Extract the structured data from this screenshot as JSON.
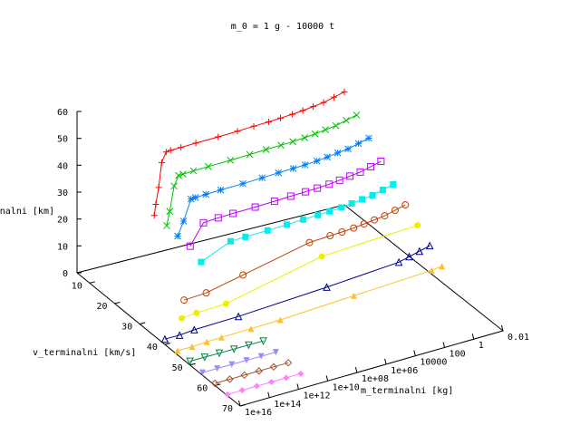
{
  "chart_data": {
    "type": "line",
    "title": "m_0 = 1 g - 10000 t",
    "zlabel": "h_terminalni [km]",
    "ylabel": "v_terminalni [km/s]",
    "xlabel": "m_terminalni [kg]",
    "zticks": [
      "0",
      "10",
      "20",
      "30",
      "40",
      "50",
      "60"
    ],
    "yticks": [
      "10",
      "20",
      "30",
      "40",
      "50",
      "60",
      "70"
    ],
    "xticks": [
      "0.01",
      "1",
      "100",
      "10000",
      "1e+06",
      "1e+08",
      "1e+10",
      "1e+12",
      "1e+14",
      "1e+16"
    ],
    "zlim": [
      0,
      60
    ],
    "ylim": [
      5,
      70
    ],
    "xlim_log10": [
      -2,
      16
    ],
    "series": [
      {
        "v": 5,
        "color": "#ff0000",
        "marker": "plus",
        "points": [
          [
            -2,
            42
          ],
          [
            -1.3,
            41
          ],
          [
            -0.6,
            40
          ],
          [
            0.1,
            39.5
          ],
          [
            0.8,
            39
          ],
          [
            1.5,
            38.6
          ],
          [
            2.3,
            38.3
          ],
          [
            3.1,
            38
          ],
          [
            4.1,
            37.8
          ],
          [
            5.2,
            37.5
          ],
          [
            6.5,
            37.2
          ],
          [
            8,
            37
          ],
          [
            9,
            36.8
          ],
          [
            9.7,
            36.7
          ],
          [
            10,
            36.5
          ],
          [
            10.3,
            33
          ],
          [
            10.5,
            24
          ],
          [
            10.7,
            18
          ],
          [
            10.8,
            14
          ]
        ]
      },
      {
        "v": 10,
        "color": "#00c000",
        "marker": "cross",
        "points": [
          [
            -2,
            37
          ],
          [
            -1.3,
            36
          ],
          [
            -0.6,
            35
          ],
          [
            0.1,
            34.5
          ],
          [
            0.8,
            34
          ],
          [
            1.5,
            33.5
          ],
          [
            2.3,
            33.2
          ],
          [
            3.1,
            33
          ],
          [
            4.1,
            32.8
          ],
          [
            5.2,
            32.5
          ],
          [
            6.5,
            32.2
          ],
          [
            8,
            32
          ],
          [
            9,
            31.8
          ],
          [
            9.7,
            31.6
          ],
          [
            10,
            31.5
          ],
          [
            10.3,
            28
          ],
          [
            10.6,
            19
          ],
          [
            10.8,
            14
          ]
        ]
      },
      {
        "v": 15,
        "color": "#0080ff",
        "marker": "star",
        "points": [
          [
            -2,
            32
          ],
          [
            -1.3,
            31
          ],
          [
            -0.6,
            30
          ],
          [
            0.1,
            29.5
          ],
          [
            0.8,
            29
          ],
          [
            1.5,
            28.5
          ],
          [
            2.3,
            28.2
          ],
          [
            3.1,
            28
          ],
          [
            4.1,
            27.8
          ],
          [
            5.2,
            27.5
          ],
          [
            6.5,
            27.2
          ],
          [
            8,
            27
          ],
          [
            9,
            26.8
          ],
          [
            9.7,
            26.6
          ],
          [
            10,
            26.5
          ],
          [
            10.5,
            19
          ],
          [
            10.9,
            14
          ]
        ]
      },
      {
        "v": 20,
        "color": "#c000ff",
        "marker": "open-square",
        "points": [
          [
            -2,
            27
          ],
          [
            -1.3,
            26
          ],
          [
            -0.6,
            25
          ],
          [
            0.1,
            24.5
          ],
          [
            0.8,
            24
          ],
          [
            1.5,
            23.5
          ],
          [
            2.3,
            23.2
          ],
          [
            3.1,
            23
          ],
          [
            4.1,
            22.8
          ],
          [
            5.2,
            22.5
          ],
          [
            6.5,
            22.2
          ],
          [
            8,
            22
          ],
          [
            9,
            21.8
          ],
          [
            10,
            21.4
          ],
          [
            10.9,
            14
          ]
        ]
      },
      {
        "v": 25,
        "color": "#00eeee",
        "marker": "filled-square",
        "points": [
          [
            -2,
            22
          ],
          [
            -1.3,
            21
          ],
          [
            -0.6,
            20
          ],
          [
            0.1,
            19.5
          ],
          [
            0.8,
            19
          ],
          [
            1.5,
            18.5
          ],
          [
            2.3,
            18.2
          ],
          [
            3.1,
            18
          ],
          [
            4.1,
            17.8
          ],
          [
            5.2,
            17.5
          ],
          [
            6.5,
            17.2
          ],
          [
            8,
            17
          ],
          [
            9,
            16.8
          ],
          [
            11,
            12
          ]
        ]
      },
      {
        "v": 30,
        "color": "#c04000",
        "marker": "open-circle",
        "points": [
          [
            -2,
            18
          ],
          [
            -1.3,
            17
          ],
          [
            -0.6,
            16
          ],
          [
            0.1,
            15.5
          ],
          [
            0.8,
            15
          ],
          [
            1.5,
            14.5
          ],
          [
            2.3,
            14.2
          ],
          [
            3.1,
            14
          ],
          [
            4.5,
            13.5
          ],
          [
            9,
            8
          ],
          [
            11.5,
            5
          ],
          [
            13,
            4.5
          ]
        ]
      },
      {
        "v": 35,
        "color": "#eeee00",
        "marker": "filled-circle",
        "points": [
          [
            -2,
            14
          ],
          [
            4.5,
            12
          ],
          [
            11,
            4
          ],
          [
            13,
            3.5
          ],
          [
            14,
            3
          ]
        ]
      },
      {
        "v": 40,
        "color": "#00008b",
        "marker": "open-triangle",
        "points": [
          [
            -2,
            10
          ],
          [
            -1.3,
            9
          ],
          [
            -0.6,
            8
          ],
          [
            0.1,
            7
          ],
          [
            5,
            5
          ],
          [
            11,
            3
          ],
          [
            14,
            2.5
          ],
          [
            15,
            2
          ],
          [
            16,
            2
          ]
        ]
      },
      {
        "v": 45,
        "color": "#ffc020",
        "marker": "filled-triangle",
        "points": [
          [
            -2,
            6
          ],
          [
            -1.3,
            5.5
          ],
          [
            4,
            4
          ],
          [
            9,
            2.5
          ],
          [
            11,
            2.2
          ],
          [
            13,
            2
          ],
          [
            14,
            1.8
          ],
          [
            15,
            1.5
          ],
          [
            16,
            1.5
          ]
        ]
      },
      {
        "v": 50,
        "color": "#008040",
        "marker": "open-triangle-down",
        "points": [
          [
            11,
            1.4
          ],
          [
            12,
            1.4
          ],
          [
            13,
            1.4
          ],
          [
            14,
            1.4
          ],
          [
            15,
            1.4
          ],
          [
            16,
            1.4
          ]
        ]
      },
      {
        "v": 55,
        "color": "#9b8cff",
        "marker": "filled-triangle-down",
        "points": [
          [
            11,
            1
          ],
          [
            12,
            1
          ],
          [
            13,
            1
          ],
          [
            14,
            1
          ],
          [
            15,
            1
          ],
          [
            16,
            1
          ]
        ]
      },
      {
        "v": 60,
        "color": "#a0522d",
        "marker": "open-diamond",
        "points": [
          [
            11,
            0.8
          ],
          [
            12,
            0.8
          ],
          [
            13,
            0.8
          ],
          [
            14,
            0.8
          ],
          [
            15,
            0.8
          ],
          [
            16,
            0.8
          ]
        ]
      },
      {
        "v": 65,
        "color": "#ff80ff",
        "marker": "filled-diamond",
        "points": [
          [
            11,
            0.5
          ],
          [
            12,
            0.5
          ],
          [
            13,
            0.5
          ],
          [
            14,
            0.5
          ],
          [
            15,
            0.5
          ],
          [
            16,
            0.5
          ]
        ]
      }
    ]
  }
}
